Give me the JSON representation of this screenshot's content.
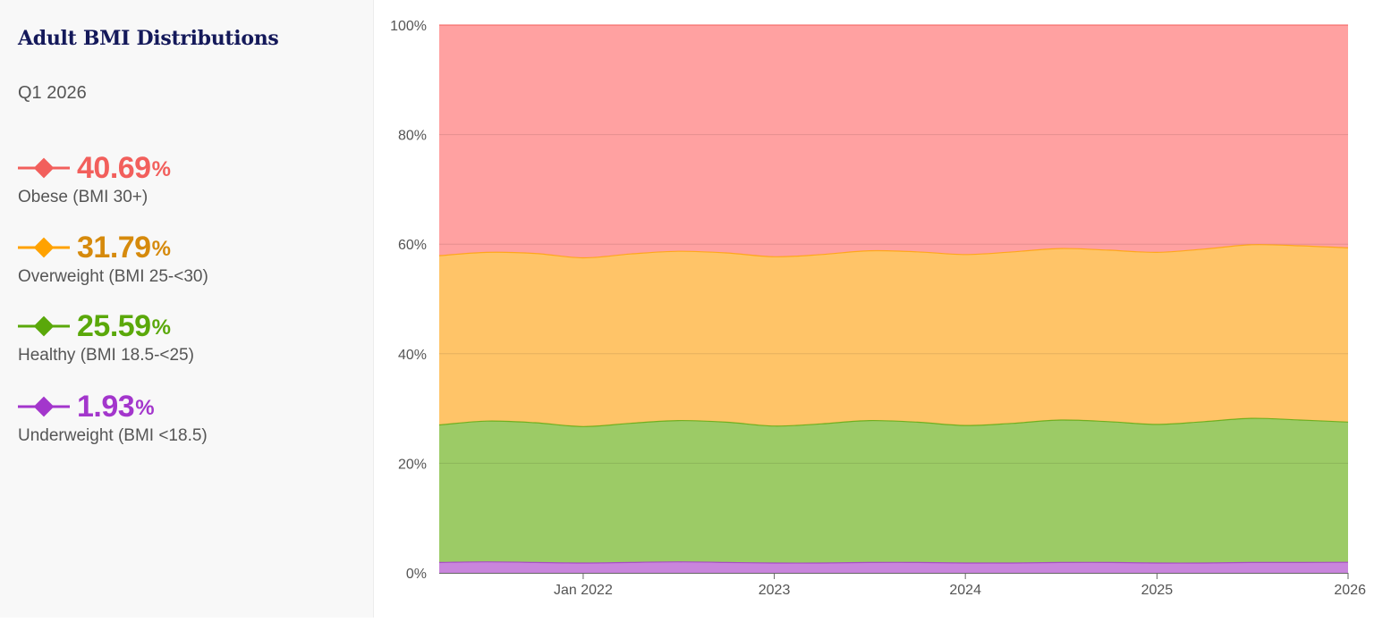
{
  "sidebar": {
    "title": "Adult BMI Distributions",
    "subtitle": "Q1 2026",
    "legend": [
      {
        "value": "40.69",
        "unit": "%",
        "label": "Obese (BMI 30+)",
        "color": "#f25f5c",
        "text_color": "#f25f5c"
      },
      {
        "value": "31.79",
        "unit": "%",
        "label": "Overweight (BMI 25-<30)",
        "color": "#ffa200",
        "text_color": "#d68a0c"
      },
      {
        "value": "25.59",
        "unit": "%",
        "label": "Healthy (BMI 18.5-<25)",
        "color": "#5aa80a",
        "text_color": "#5aa80a"
      },
      {
        "value": "1.93",
        "unit": "%",
        "label": "Underweight (BMI <18.5)",
        "color": "#a336cc",
        "text_color": "#a336cc"
      }
    ]
  },
  "chart_data": {
    "type": "area",
    "stacked": true,
    "title": "",
    "xlabel": "",
    "ylabel": "",
    "ylim": [
      0,
      100
    ],
    "y_ticks": [
      "0%",
      "20%",
      "40%",
      "60%",
      "80%",
      "100%"
    ],
    "x_ticks": [
      {
        "label": "Jan 2022",
        "x": "2022-01-01"
      },
      {
        "label": "2023",
        "x": "2023-01-01"
      },
      {
        "label": "2024",
        "x": "2024-01-01"
      },
      {
        "label": "2025",
        "x": "2025-01-01"
      },
      {
        "label": "2026",
        "x": "2026-01-01"
      }
    ],
    "x": [
      "2021-04-01",
      "2021-07-01",
      "2021-10-01",
      "2022-01-01",
      "2022-04-01",
      "2022-07-01",
      "2022-10-01",
      "2023-01-01",
      "2023-04-01",
      "2023-07-01",
      "2023-10-01",
      "2024-01-01",
      "2024-04-01",
      "2024-07-01",
      "2024-10-01",
      "2025-01-01",
      "2025-04-01",
      "2025-07-01",
      "2025-10-01",
      "2026-01-01"
    ],
    "series": [
      {
        "name": "Underweight (BMI <18.5)",
        "color": "#a336cc",
        "fill": "#c985dc",
        "values": [
          1.9,
          2.0,
          1.9,
          1.8,
          1.9,
          2.0,
          1.9,
          1.8,
          1.8,
          1.9,
          1.9,
          1.8,
          1.8,
          1.9,
          1.9,
          1.8,
          1.8,
          1.9,
          1.9,
          1.93
        ]
      },
      {
        "name": "Healthy (BMI 18.5-<25)",
        "color": "#5aa80a",
        "fill": "#9ccb66",
        "values": [
          25.1,
          25.7,
          25.5,
          24.9,
          25.4,
          25.8,
          25.6,
          25.0,
          25.4,
          25.9,
          25.6,
          25.1,
          25.5,
          26.0,
          25.7,
          25.3,
          25.8,
          26.3,
          26.0,
          25.59
        ]
      },
      {
        "name": "Overweight (BMI 25-<30)",
        "color": "#ffa200",
        "fill": "#ffc468",
        "values": [
          30.9,
          30.8,
          30.9,
          30.8,
          30.9,
          30.9,
          30.9,
          30.9,
          30.9,
          31.0,
          31.1,
          31.2,
          31.3,
          31.3,
          31.3,
          31.4,
          31.5,
          31.7,
          31.8,
          31.79
        ]
      },
      {
        "name": "Obese (BMI 30+)",
        "color": "#f25f5c",
        "fill": "#ffa1a1",
        "values": [
          42.1,
          41.5,
          41.7,
          42.5,
          41.8,
          41.3,
          41.6,
          42.3,
          41.9,
          41.2,
          41.4,
          41.9,
          41.4,
          40.8,
          41.1,
          41.5,
          40.9,
          40.1,
          40.3,
          40.69
        ]
      }
    ]
  }
}
